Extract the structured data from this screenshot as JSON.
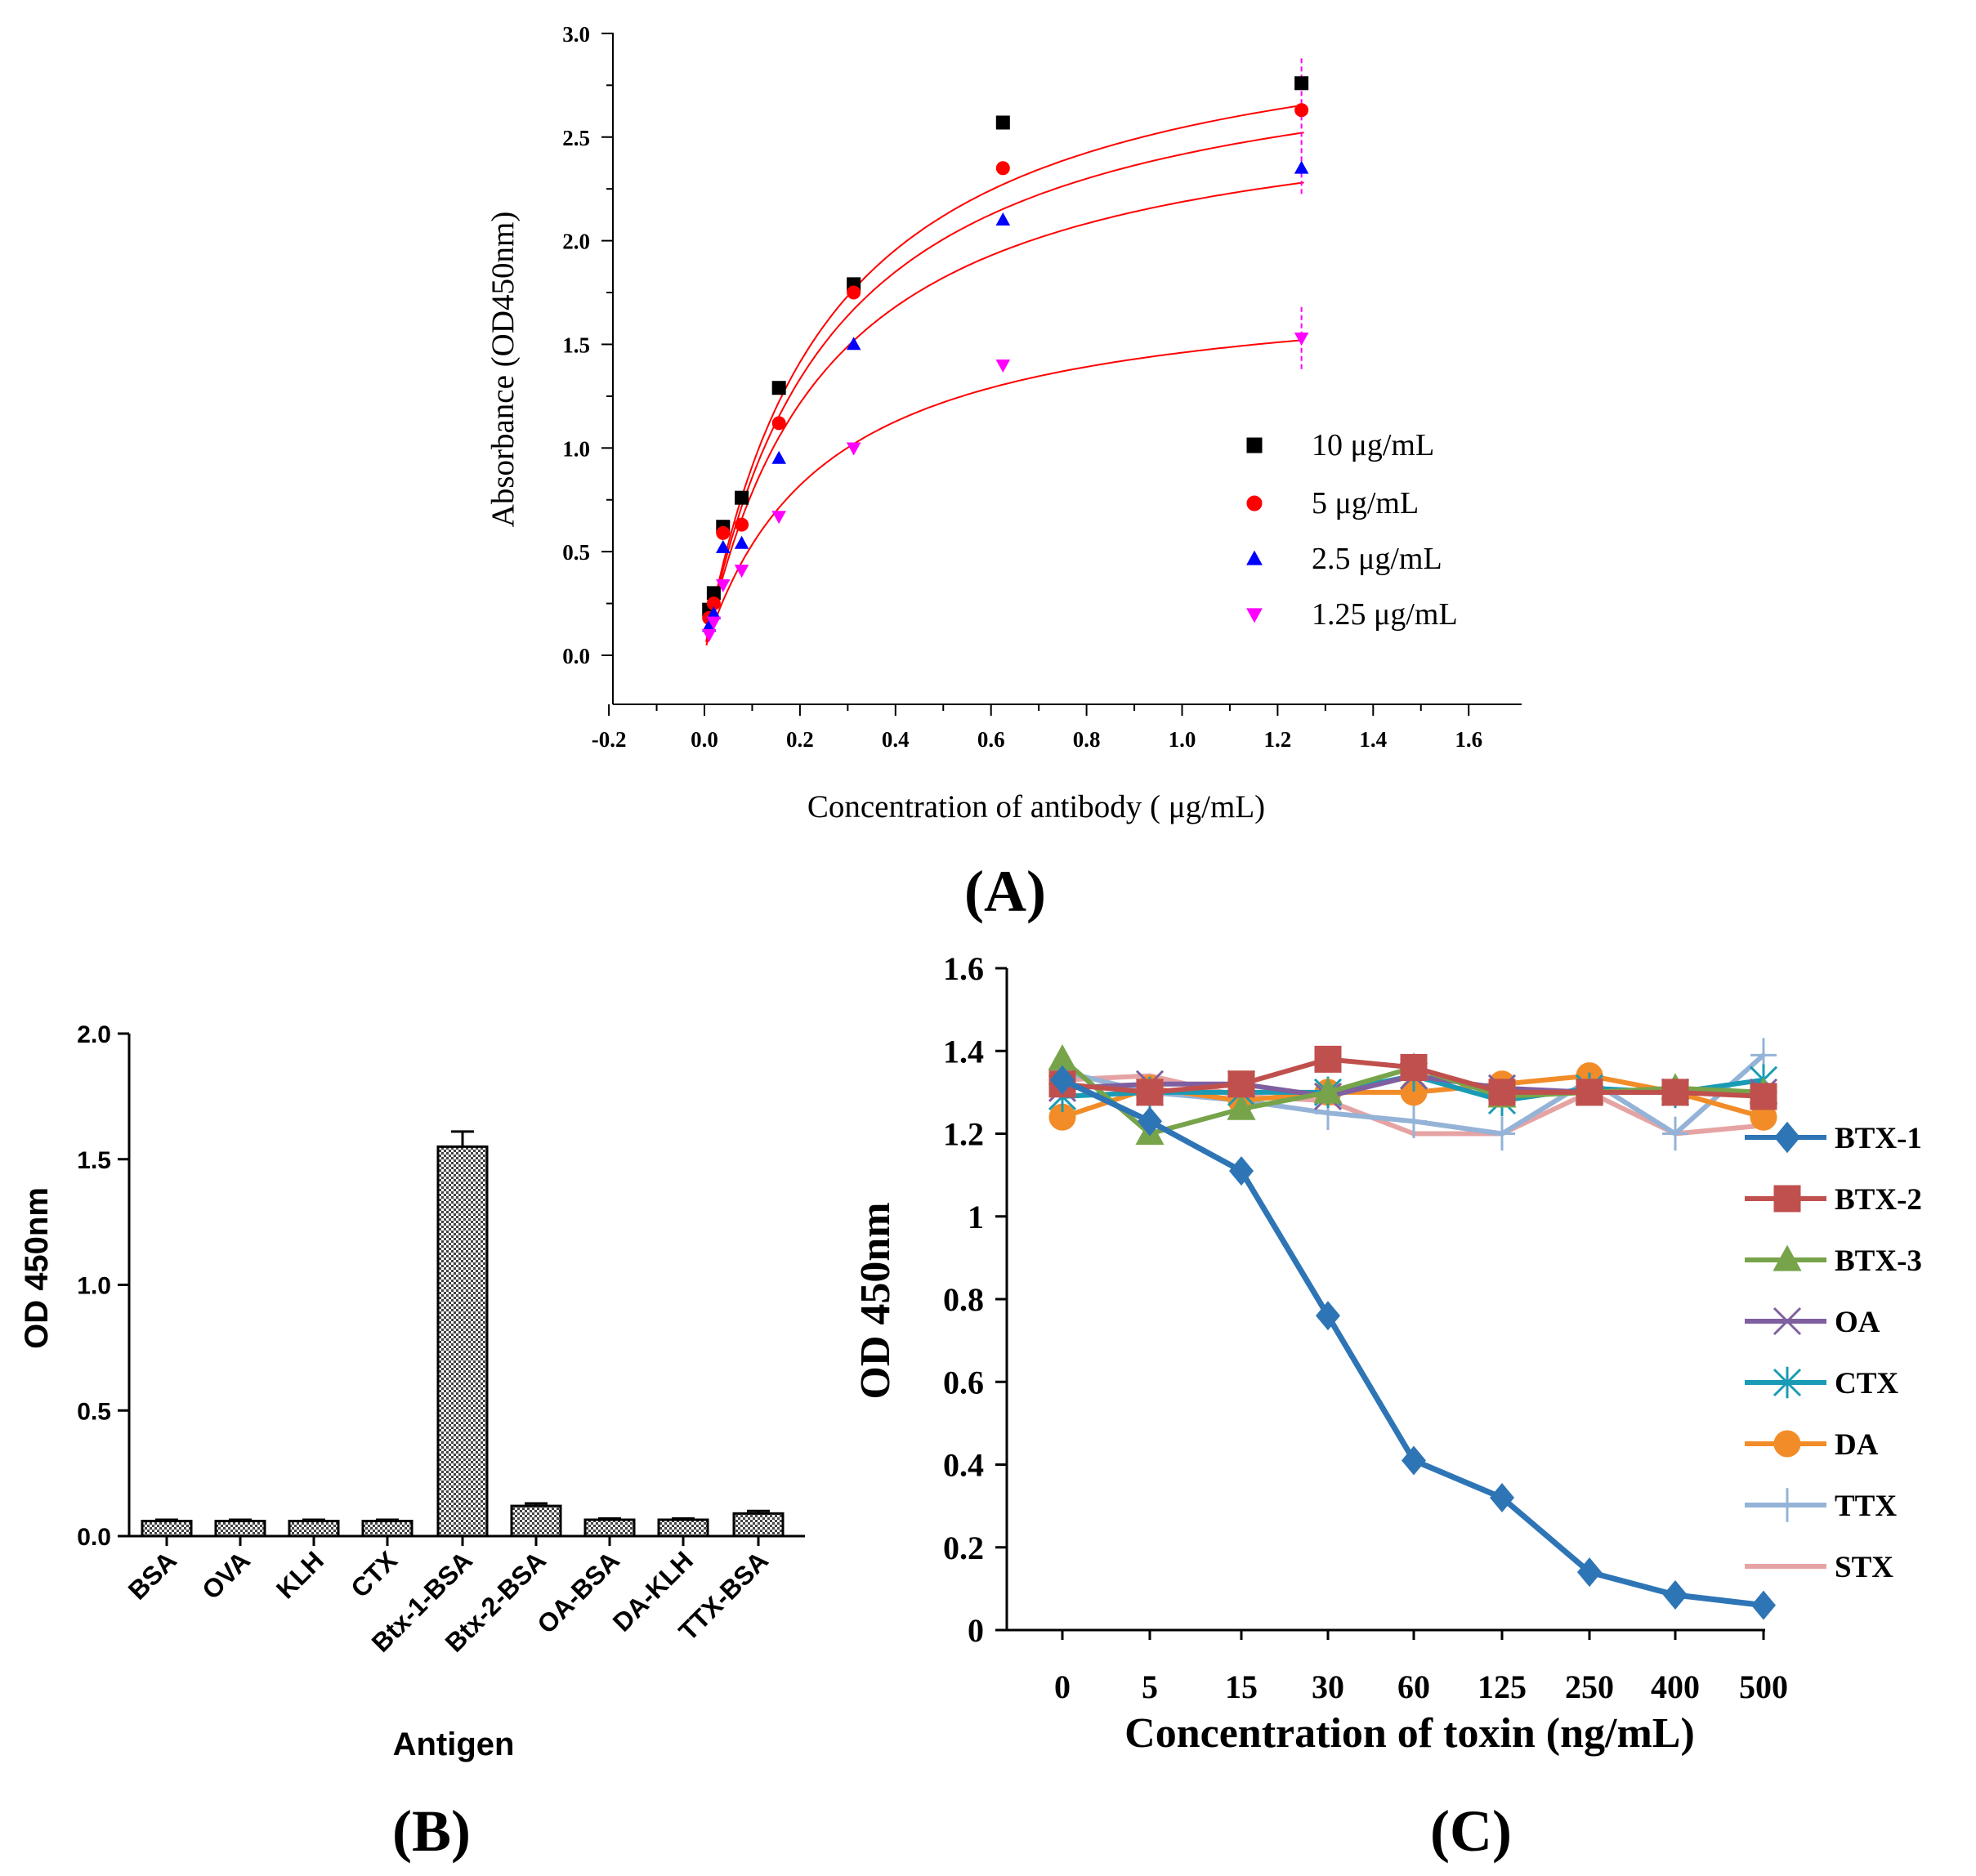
{
  "chart_data": [
    {
      "type": "scatter",
      "panel_label": "(A)",
      "xlabel": "Concentration of antibody ( μg/mL)",
      "ylabel": "Absorbance (OD450nm)",
      "xlim": [
        -0.2,
        1.7
      ],
      "ylim": [
        -0.25,
        3.0
      ],
      "xticks": [
        -0.2,
        0.0,
        0.2,
        0.4,
        0.6,
        0.8,
        1.0,
        1.2,
        1.4,
        1.6
      ],
      "xtick_labels": [
        "-0.2",
        "0.0",
        "0.2",
        "0.4",
        "0.6",
        "0.8",
        "1.0",
        "1.2",
        "1.4",
        "1.6"
      ],
      "yticks": [
        0.0,
        0.5,
        1.0,
        1.5,
        2.0,
        2.5,
        3.0
      ],
      "ytick_labels": [
        "0.0",
        "0.5",
        "1.0",
        "1.5",
        "2.0",
        "2.5",
        "3.0"
      ],
      "legend_position": "bottom-right",
      "x": [
        0.0098,
        0.0195,
        0.039,
        0.078,
        0.156,
        0.3125,
        0.625,
        1.25
      ],
      "series": [
        {
          "name": "10 μg/mL",
          "marker": "square",
          "color": "#000000",
          "fit_color": "#ff0000",
          "fit_max": 3.17,
          "fit_k": 0.255,
          "values": [
            0.22,
            0.3,
            0.62,
            0.76,
            1.29,
            1.79,
            2.57,
            2.76
          ]
        },
        {
          "name": "5 μg/mL",
          "marker": "circle",
          "color": "#ff0000",
          "fit_color": "#ff0000",
          "fit_max": 3.02,
          "fit_k": 0.26,
          "values": [
            0.18,
            0.25,
            0.59,
            0.63,
            1.12,
            1.75,
            2.35,
            2.63
          ]
        },
        {
          "name": "2.5 μg/mL",
          "marker": "triangle-up",
          "color": "#0000ff",
          "fit_color": "#ff0000",
          "fit_max": 2.72,
          "fit_k": 0.255,
          "values": [
            0.14,
            0.2,
            0.52,
            0.54,
            0.95,
            1.5,
            2.1,
            2.35
          ]
        },
        {
          "name": "1.25 μg/mL",
          "marker": "triangle-down",
          "color": "#ff00ff",
          "fit_color": "#ff0000",
          "fit_max": 1.8,
          "fit_k": 0.25,
          "values": [
            0.1,
            0.16,
            0.34,
            0.41,
            0.67,
            1.0,
            1.4,
            1.53
          ]
        }
      ]
    },
    {
      "type": "bar",
      "panel_label": "(B)",
      "xlabel": "Antigen",
      "ylabel": "OD 450nm",
      "ylim": [
        0,
        2.0
      ],
      "yticks": [
        0.0,
        0.5,
        1.0,
        1.5,
        2.0
      ],
      "ytick_labels": [
        "0.0",
        "0.5",
        "1.0",
        "1.5",
        "2.0"
      ],
      "categories": [
        "BSA",
        "OVA",
        "KLH",
        "CTX",
        "Btx-1-BSA",
        "Btx-2-BSA",
        "OA-BSA",
        "DA-KLH",
        "TTX-BSA"
      ],
      "values": [
        0.06,
        0.06,
        0.06,
        0.06,
        1.55,
        0.12,
        0.065,
        0.065,
        0.09
      ],
      "errors": [
        0.005,
        0.005,
        0.005,
        0.005,
        0.06,
        0.01,
        0.005,
        0.005,
        0.01
      ]
    },
    {
      "type": "line",
      "panel_label": "(C)",
      "xlabel": "Concentration of toxin (ng/mL)",
      "ylabel": "OD 450nm",
      "ylim": [
        0,
        1.6
      ],
      "yticks": [
        0,
        0.2,
        0.4,
        0.6,
        0.8,
        1.0,
        1.2,
        1.4,
        1.6
      ],
      "ytick_labels": [
        "0",
        "0.2",
        "0.4",
        "0.6",
        "0.8",
        "1",
        "1.2",
        "1.4",
        "1.6"
      ],
      "categories": [
        "0",
        "5",
        "15",
        "30",
        "60",
        "125",
        "250",
        "400",
        "500"
      ],
      "legend_position": "right",
      "series": [
        {
          "name": "BTX-1",
          "marker": "diamond",
          "color": "#2e75b6",
          "values": [
            1.33,
            1.23,
            1.11,
            0.76,
            0.41,
            0.32,
            0.14,
            0.085,
            0.06
          ]
        },
        {
          "name": "BTX-2",
          "marker": "square",
          "color": "#c0504d",
          "values": [
            1.32,
            1.3,
            1.32,
            1.38,
            1.36,
            1.3,
            1.3,
            1.3,
            1.29
          ]
        },
        {
          "name": "BTX-3",
          "marker": "triangle",
          "color": "#77a44a",
          "values": [
            1.38,
            1.2,
            1.26,
            1.3,
            1.36,
            1.29,
            1.3,
            1.31,
            1.3
          ]
        },
        {
          "name": "OA",
          "marker": "x",
          "color": "#7f5f9f",
          "values": [
            1.31,
            1.32,
            1.32,
            1.29,
            1.34,
            1.31,
            1.3,
            1.3,
            1.3
          ]
        },
        {
          "name": "CTX",
          "marker": "star",
          "color": "#1a9bb5",
          "values": [
            1.29,
            1.3,
            1.3,
            1.3,
            1.34,
            1.28,
            1.31,
            1.3,
            1.33
          ]
        },
        {
          "name": "DA",
          "marker": "circle",
          "color": "#f28c28",
          "values": [
            1.24,
            1.31,
            1.28,
            1.3,
            1.3,
            1.32,
            1.34,
            1.3,
            1.24
          ]
        },
        {
          "name": "TTX",
          "marker": "plus",
          "color": "#94b3d7",
          "values": [
            1.35,
            1.3,
            1.28,
            1.25,
            1.23,
            1.2,
            1.33,
            1.2,
            1.39
          ]
        },
        {
          "name": "STX",
          "marker": "none",
          "color": "#e6a3a3",
          "values": [
            1.33,
            1.34,
            1.29,
            1.28,
            1.2,
            1.2,
            1.3,
            1.2,
            1.22
          ]
        }
      ]
    }
  ]
}
